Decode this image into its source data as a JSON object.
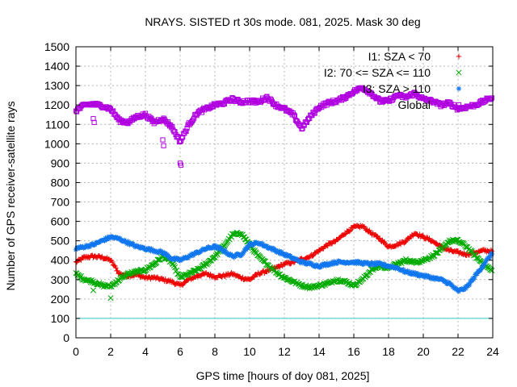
{
  "chart_data": {
    "type": "scatter",
    "title": "NRAYS. SISTED rt 30s mode. 081, 2025. Mask 30 deg",
    "xlabel": "GPS time [hours of doy 081, 2025]",
    "ylabel": "Number of GPS receiver-satellite rays",
    "xlim": [
      0,
      24
    ],
    "ylim": [
      0,
      1500
    ],
    "xticks": [
      "0",
      "2",
      "4",
      "6",
      "8",
      "10",
      "12",
      "14",
      "16",
      "18",
      "20",
      "22",
      "24"
    ],
    "yticks": [
      "0",
      "100",
      "200",
      "300",
      "400",
      "500",
      "600",
      "700",
      "800",
      "900",
      "1000",
      "1100",
      "1200",
      "1300",
      "1400",
      "1500"
    ],
    "grid": true,
    "legend_position": "top-right",
    "threshold": {
      "name": "threshold",
      "value": 100,
      "color": "#33cccc"
    },
    "series": [
      {
        "name": "I1: SZA < 70",
        "marker": "+",
        "color": "#ee0000",
        "x": [
          0,
          0.5,
          1,
          1.5,
          2,
          2.5,
          3,
          3.5,
          4,
          4.5,
          5,
          5.5,
          6,
          6.5,
          7,
          7.5,
          8,
          8.5,
          9,
          9.5,
          10,
          10.5,
          11,
          11.5,
          12,
          12.5,
          13,
          13.5,
          14,
          14.5,
          15,
          15.5,
          16,
          16.5,
          17,
          17.5,
          18,
          18.5,
          19,
          19.5,
          20,
          20.5,
          21,
          21.5,
          22,
          22.5,
          23,
          23.5,
          24
        ],
        "values": [
          390,
          415,
          420,
          415,
          400,
          330,
          320,
          325,
          310,
          310,
          300,
          290,
          270,
          300,
          320,
          330,
          315,
          320,
          330,
          310,
          300,
          330,
          345,
          360,
          380,
          390,
          405,
          420,
          450,
          480,
          500,
          540,
          570,
          575,
          540,
          510,
          470,
          480,
          500,
          540,
          520,
          500,
          470,
          450,
          440,
          430,
          440,
          450,
          445
        ]
      },
      {
        "name": "I2: 70 <= SZA <= 110",
        "marker": "x",
        "color": "#00aa00",
        "x": [
          0,
          0.5,
          1,
          1.5,
          2,
          2.5,
          3,
          3.5,
          4,
          4.5,
          5,
          5.5,
          6,
          6.5,
          7,
          7.5,
          8,
          8.5,
          9,
          9.5,
          10,
          10.5,
          11,
          11.5,
          12,
          12.5,
          13,
          13.5,
          14,
          14.5,
          15,
          15.5,
          16,
          16.5,
          17,
          17.5,
          18,
          18.5,
          19,
          19.5,
          20,
          20.5,
          21,
          21.5,
          22,
          22.5,
          23,
          23.5,
          24
        ],
        "values": [
          330,
          300,
          290,
          270,
          265,
          300,
          330,
          340,
          350,
          380,
          420,
          390,
          310,
          330,
          350,
          380,
          420,
          470,
          530,
          540,
          480,
          420,
          380,
          340,
          310,
          290,
          270,
          260,
          270,
          280,
          300,
          290,
          270,
          300,
          350,
          370,
          360,
          380,
          400,
          390,
          400,
          420,
          450,
          500,
          500,
          470,
          420,
          380,
          340
        ]
      },
      {
        "name": "I3: SZA > 110",
        "marker": "*",
        "color": "#1177ee",
        "x": [
          0,
          0.5,
          1,
          1.5,
          2,
          2.5,
          3,
          3.5,
          4,
          4.5,
          5,
          5.5,
          6,
          6.5,
          7,
          7.5,
          8,
          8.5,
          9,
          9.5,
          10,
          10.5,
          11,
          11.5,
          12,
          12.5,
          13,
          13.5,
          14,
          14.5,
          15,
          15.5,
          16,
          16.5,
          17,
          17.5,
          18,
          18.5,
          19,
          19.5,
          20,
          20.5,
          21,
          21.5,
          22,
          22.5,
          23,
          23.5,
          24
        ],
        "values": [
          460,
          470,
          480,
          500,
          520,
          510,
          490,
          470,
          460,
          450,
          440,
          410,
          400,
          420,
          440,
          460,
          470,
          450,
          420,
          430,
          480,
          490,
          470,
          450,
          430,
          410,
          390,
          380,
          370,
          380,
          390,
          390,
          390,
          385,
          380,
          380,
          370,
          360,
          340,
          330,
          320,
          310,
          300,
          280,
          240,
          260,
          320,
          380,
          440
        ]
      },
      {
        "name": "Global",
        "marker": "square",
        "color": "#b000e0",
        "x": [
          0,
          0.5,
          1,
          1.5,
          2,
          2.5,
          3,
          3.5,
          4,
          4.5,
          5,
          5.5,
          6,
          6.5,
          7,
          7.5,
          8,
          8.5,
          9,
          9.5,
          10,
          10.5,
          11,
          11.5,
          12,
          12.5,
          13,
          13.5,
          14,
          14.5,
          15,
          15.5,
          16,
          16.5,
          17,
          17.5,
          18,
          18.5,
          19,
          19.5,
          20,
          20.5,
          21,
          21.5,
          22,
          22.5,
          23,
          23.5,
          24
        ],
        "values": [
          1170,
          1200,
          1205,
          1195,
          1180,
          1120,
          1110,
          1140,
          1150,
          1110,
          1130,
          1090,
          1010,
          1100,
          1160,
          1180,
          1200,
          1210,
          1230,
          1215,
          1220,
          1215,
          1240,
          1200,
          1180,
          1150,
          1080,
          1140,
          1190,
          1210,
          1220,
          1240,
          1270,
          1290,
          1260,
          1220,
          1220,
          1250,
          1240,
          1260,
          1230,
          1220,
          1200,
          1210,
          1180,
          1190,
          1200,
          1220,
          1240
        ]
      }
    ],
    "outliers": [
      {
        "series": 3,
        "x": [
          1.0,
          1.05,
          5.0,
          5.05,
          6.0,
          6.05
        ],
        "values": [
          1130,
          1110,
          1020,
          990,
          900,
          890
        ]
      },
      {
        "series": 1,
        "x": [
          1.0,
          2.0
        ],
        "values": [
          245,
          205
        ]
      }
    ]
  }
}
